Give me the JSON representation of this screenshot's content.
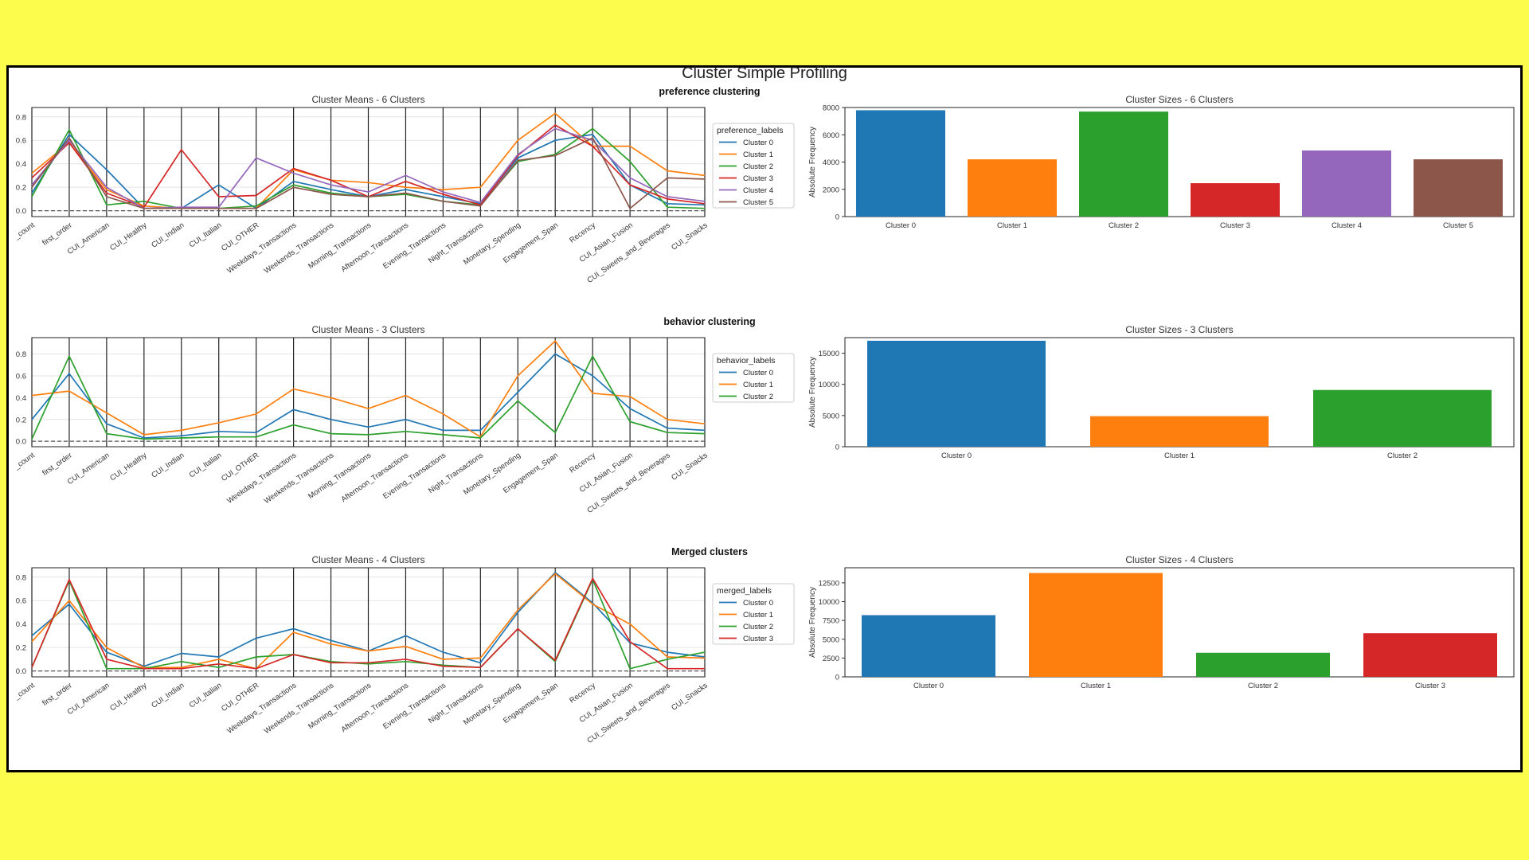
{
  "figure_title": "Cluster Simple Profiling",
  "features": [
    "_count",
    "first_order",
    "CUI_American",
    "CUI_Healthy",
    "CUI_Indian",
    "CUI_Italian",
    "CUI_OTHER",
    "Weekdays_Transactions",
    "Weekends_Transactions",
    "Morning_Transactions",
    "Afternoon_Transactions",
    "Evening_Transactions",
    "Night_Transactions",
    "Monetary_Spending",
    "Engagement_Span",
    "Recency",
    "CUI_Asian_Fusion",
    "CUI_Sweets_and_Beverages",
    "CUI_Snacks"
  ],
  "colors": {
    "Cluster 0": "#1f77b4",
    "Cluster 1": "#ff7f0e",
    "Cluster 2": "#2ca02c",
    "Cluster 3": "#d62728",
    "Cluster 4": "#9467bd",
    "Cluster 5": "#8c564b"
  },
  "chart_data": [
    {
      "type": "line",
      "section_label": "preference clustering",
      "title": "Cluster Means - 6 Clusters",
      "legend_title": "preference_labels",
      "ylim": [
        -0.05,
        0.88
      ],
      "yticks": [
        0.0,
        0.2,
        0.4,
        0.6,
        0.8
      ],
      "series": [
        {
          "name": "Cluster 0",
          "values": [
            0.15,
            0.65,
            0.35,
            0.02,
            0.02,
            0.22,
            0.02,
            0.25,
            0.18,
            0.12,
            0.18,
            0.12,
            0.06,
            0.45,
            0.6,
            0.65,
            0.22,
            0.06,
            0.05
          ]
        },
        {
          "name": "Cluster 1",
          "values": [
            0.32,
            0.58,
            0.18,
            0.04,
            0.02,
            0.02,
            0.02,
            0.35,
            0.26,
            0.24,
            0.2,
            0.18,
            0.2,
            0.6,
            0.83,
            0.55,
            0.55,
            0.34,
            0.3
          ]
        },
        {
          "name": "Cluster 2",
          "values": [
            0.12,
            0.69,
            0.05,
            0.08,
            0.02,
            0.02,
            0.04,
            0.22,
            0.15,
            0.12,
            0.14,
            0.08,
            0.05,
            0.42,
            0.48,
            0.7,
            0.42,
            0.03,
            0.02
          ]
        },
        {
          "name": "Cluster 3",
          "values": [
            0.28,
            0.58,
            0.15,
            0.03,
            0.52,
            0.12,
            0.13,
            0.36,
            0.26,
            0.12,
            0.25,
            0.14,
            0.05,
            0.47,
            0.73,
            0.55,
            0.22,
            0.1,
            0.06
          ]
        },
        {
          "name": "Cluster 4",
          "values": [
            0.22,
            0.6,
            0.2,
            0.02,
            0.03,
            0.03,
            0.45,
            0.32,
            0.22,
            0.16,
            0.3,
            0.16,
            0.07,
            0.48,
            0.7,
            0.6,
            0.28,
            0.12,
            0.08
          ]
        },
        {
          "name": "Cluster 5",
          "values": [
            0.2,
            0.62,
            0.12,
            0.02,
            0.02,
            0.02,
            0.02,
            0.2,
            0.14,
            0.12,
            0.15,
            0.08,
            0.04,
            0.43,
            0.47,
            0.62,
            0.02,
            0.28,
            0.27
          ]
        }
      ]
    },
    {
      "type": "bar",
      "title": "Cluster Sizes - 6 Clusters",
      "ylabel": "Absolute Frequency",
      "ylim": [
        0,
        8000
      ],
      "yticks": [
        0,
        2000,
        4000,
        6000,
        8000
      ],
      "categories": [
        "Cluster 0",
        "Cluster 1",
        "Cluster 2",
        "Cluster 3",
        "Cluster 4",
        "Cluster 5"
      ],
      "values": [
        7800,
        4200,
        7700,
        2450,
        4850,
        4200
      ]
    },
    {
      "type": "line",
      "section_label": "behavior clustering",
      "title": "Cluster Means - 3 Clusters",
      "legend_title": "behavior_labels",
      "ylim": [
        -0.05,
        0.95
      ],
      "yticks": [
        0.0,
        0.2,
        0.4,
        0.6,
        0.8
      ],
      "series": [
        {
          "name": "Cluster 0",
          "values": [
            0.2,
            0.62,
            0.16,
            0.03,
            0.05,
            0.09,
            0.08,
            0.29,
            0.2,
            0.13,
            0.2,
            0.1,
            0.1,
            0.45,
            0.8,
            0.6,
            0.3,
            0.12,
            0.1
          ]
        },
        {
          "name": "Cluster 1",
          "values": [
            0.42,
            0.46,
            0.26,
            0.06,
            0.1,
            0.17,
            0.25,
            0.48,
            0.4,
            0.3,
            0.42,
            0.25,
            0.04,
            0.6,
            0.92,
            0.44,
            0.41,
            0.2,
            0.16
          ]
        },
        {
          "name": "Cluster 2",
          "values": [
            0.02,
            0.78,
            0.07,
            0.02,
            0.03,
            0.04,
            0.04,
            0.15,
            0.07,
            0.06,
            0.09,
            0.06,
            0.03,
            0.37,
            0.08,
            0.78,
            0.18,
            0.08,
            0.07
          ]
        }
      ]
    },
    {
      "type": "bar",
      "title": "Cluster Sizes - 3 Clusters",
      "ylabel": "Absolute Frequency",
      "ylim": [
        0,
        17500
      ],
      "yticks": [
        0,
        5000,
        10000,
        15000
      ],
      "categories": [
        "Cluster 0",
        "Cluster 1",
        "Cluster 2"
      ],
      "values": [
        17000,
        4900,
        9100
      ]
    },
    {
      "type": "line",
      "section_label": "Merged clusters",
      "title": "Cluster Means - 4 Clusters",
      "legend_title": "merged_labels",
      "ylim": [
        -0.05,
        0.88
      ],
      "yticks": [
        0.0,
        0.2,
        0.4,
        0.6,
        0.8
      ],
      "series": [
        {
          "name": "Cluster 0",
          "values": [
            0.3,
            0.57,
            0.16,
            0.04,
            0.15,
            0.12,
            0.28,
            0.36,
            0.26,
            0.17,
            0.3,
            0.16,
            0.07,
            0.5,
            0.84,
            0.58,
            0.24,
            0.16,
            0.12
          ]
        },
        {
          "name": "Cluster 1",
          "values": [
            0.25,
            0.6,
            0.2,
            0.03,
            0.03,
            0.1,
            0.02,
            0.33,
            0.23,
            0.17,
            0.21,
            0.1,
            0.11,
            0.52,
            0.83,
            0.57,
            0.4,
            0.12,
            0.11
          ]
        },
        {
          "name": "Cluster 2",
          "values": [
            0.03,
            0.77,
            0.02,
            0.02,
            0.08,
            0.03,
            0.12,
            0.14,
            0.08,
            0.06,
            0.08,
            0.05,
            0.03,
            0.36,
            0.08,
            0.78,
            0.02,
            0.1,
            0.16
          ]
        },
        {
          "name": "Cluster 3",
          "values": [
            0.03,
            0.78,
            0.1,
            0.02,
            0.02,
            0.06,
            0.02,
            0.14,
            0.07,
            0.07,
            0.1,
            0.04,
            0.03,
            0.36,
            0.09,
            0.79,
            0.25,
            0.02,
            0.02
          ]
        }
      ]
    },
    {
      "type": "bar",
      "title": "Cluster Sizes - 4 Clusters",
      "ylabel": "Absolute Frequency",
      "ylim": [
        0,
        14500
      ],
      "yticks": [
        0,
        2500,
        5000,
        7500,
        10000,
        12500
      ],
      "categories": [
        "Cluster 0",
        "Cluster 1",
        "Cluster 2",
        "Cluster 3"
      ],
      "values": [
        8200,
        13800,
        3200,
        5800
      ]
    }
  ]
}
